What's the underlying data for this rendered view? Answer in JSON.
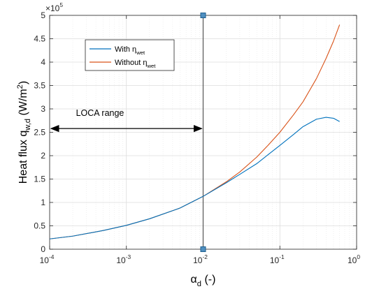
{
  "chart_data": {
    "type": "line",
    "xscale": "log",
    "xlim": [
      0.0001,
      1
    ],
    "ylim": [
      0,
      500000
    ],
    "grid": true,
    "ylabel": {
      "main": "Heat flux q",
      "sub": "w,d",
      "unit": " (W/m",
      "unit_sup": "2",
      "unit_end": ")"
    },
    "xlabel": {
      "main": "α",
      "sub": "d",
      "rest": " (-)"
    },
    "y_exponent_label": {
      "base": "×10",
      "exp": "5"
    },
    "x_ticks": [
      {
        "value": 0.0001,
        "base": "10",
        "exp": "-4"
      },
      {
        "value": 0.001,
        "base": "10",
        "exp": "-3"
      },
      {
        "value": 0.01,
        "base": "10",
        "exp": "-2"
      },
      {
        "value": 0.1,
        "base": "10",
        "exp": "-1"
      },
      {
        "value": 1,
        "base": "10",
        "exp": "0"
      }
    ],
    "y_ticks": [
      {
        "value": 0,
        "label": "0"
      },
      {
        "value": 50000,
        "label": "0.5"
      },
      {
        "value": 100000,
        "label": "1"
      },
      {
        "value": 150000,
        "label": "1.5"
      },
      {
        "value": 200000,
        "label": "2"
      },
      {
        "value": 250000,
        "label": "2.5"
      },
      {
        "value": 300000,
        "label": "3"
      },
      {
        "value": 350000,
        "label": "3.5"
      },
      {
        "value": 400000,
        "label": "4"
      },
      {
        "value": 450000,
        "label": "4.5"
      },
      {
        "value": 500000,
        "label": "5"
      }
    ],
    "series": [
      {
        "name": "With η",
        "name_sub": "wet",
        "color": "#0072BD",
        "x": [
          0.0001,
          0.0002,
          0.0005,
          0.001,
          0.002,
          0.005,
          0.01,
          0.02,
          0.03,
          0.05,
          0.07,
          0.1,
          0.15,
          0.2,
          0.3,
          0.4,
          0.5,
          0.6
        ],
        "y": [
          22000,
          28000,
          40000,
          51000,
          65000,
          88000,
          113000,
          142000,
          160000,
          183000,
          202000,
          222000,
          245000,
          262000,
          278000,
          282000,
          280000,
          273000
        ]
      },
      {
        "name": "Without η",
        "name_sub": "wet",
        "color": "#D95319",
        "x": [
          0.0001,
          0.0002,
          0.0005,
          0.001,
          0.002,
          0.005,
          0.01,
          0.02,
          0.03,
          0.05,
          0.07,
          0.1,
          0.15,
          0.2,
          0.3,
          0.4,
          0.5,
          0.6
        ],
        "y": [
          22000,
          28000,
          40000,
          51000,
          65000,
          88000,
          113000,
          144000,
          165000,
          197000,
          222000,
          250000,
          287000,
          315000,
          365000,
          408000,
          445000,
          480000
        ]
      }
    ],
    "vertical_line": {
      "x": 0.01,
      "color": "#555555",
      "marker_color": "#4F8FC0"
    },
    "annotations": [
      {
        "text": "LOCA range",
        "arrow_from_x": 0.0001,
        "arrow_to_x": 0.01,
        "y": 258000,
        "text_x": 0.00022,
        "text_y": 285000
      }
    ],
    "legend": {
      "placement": "top-left"
    }
  }
}
